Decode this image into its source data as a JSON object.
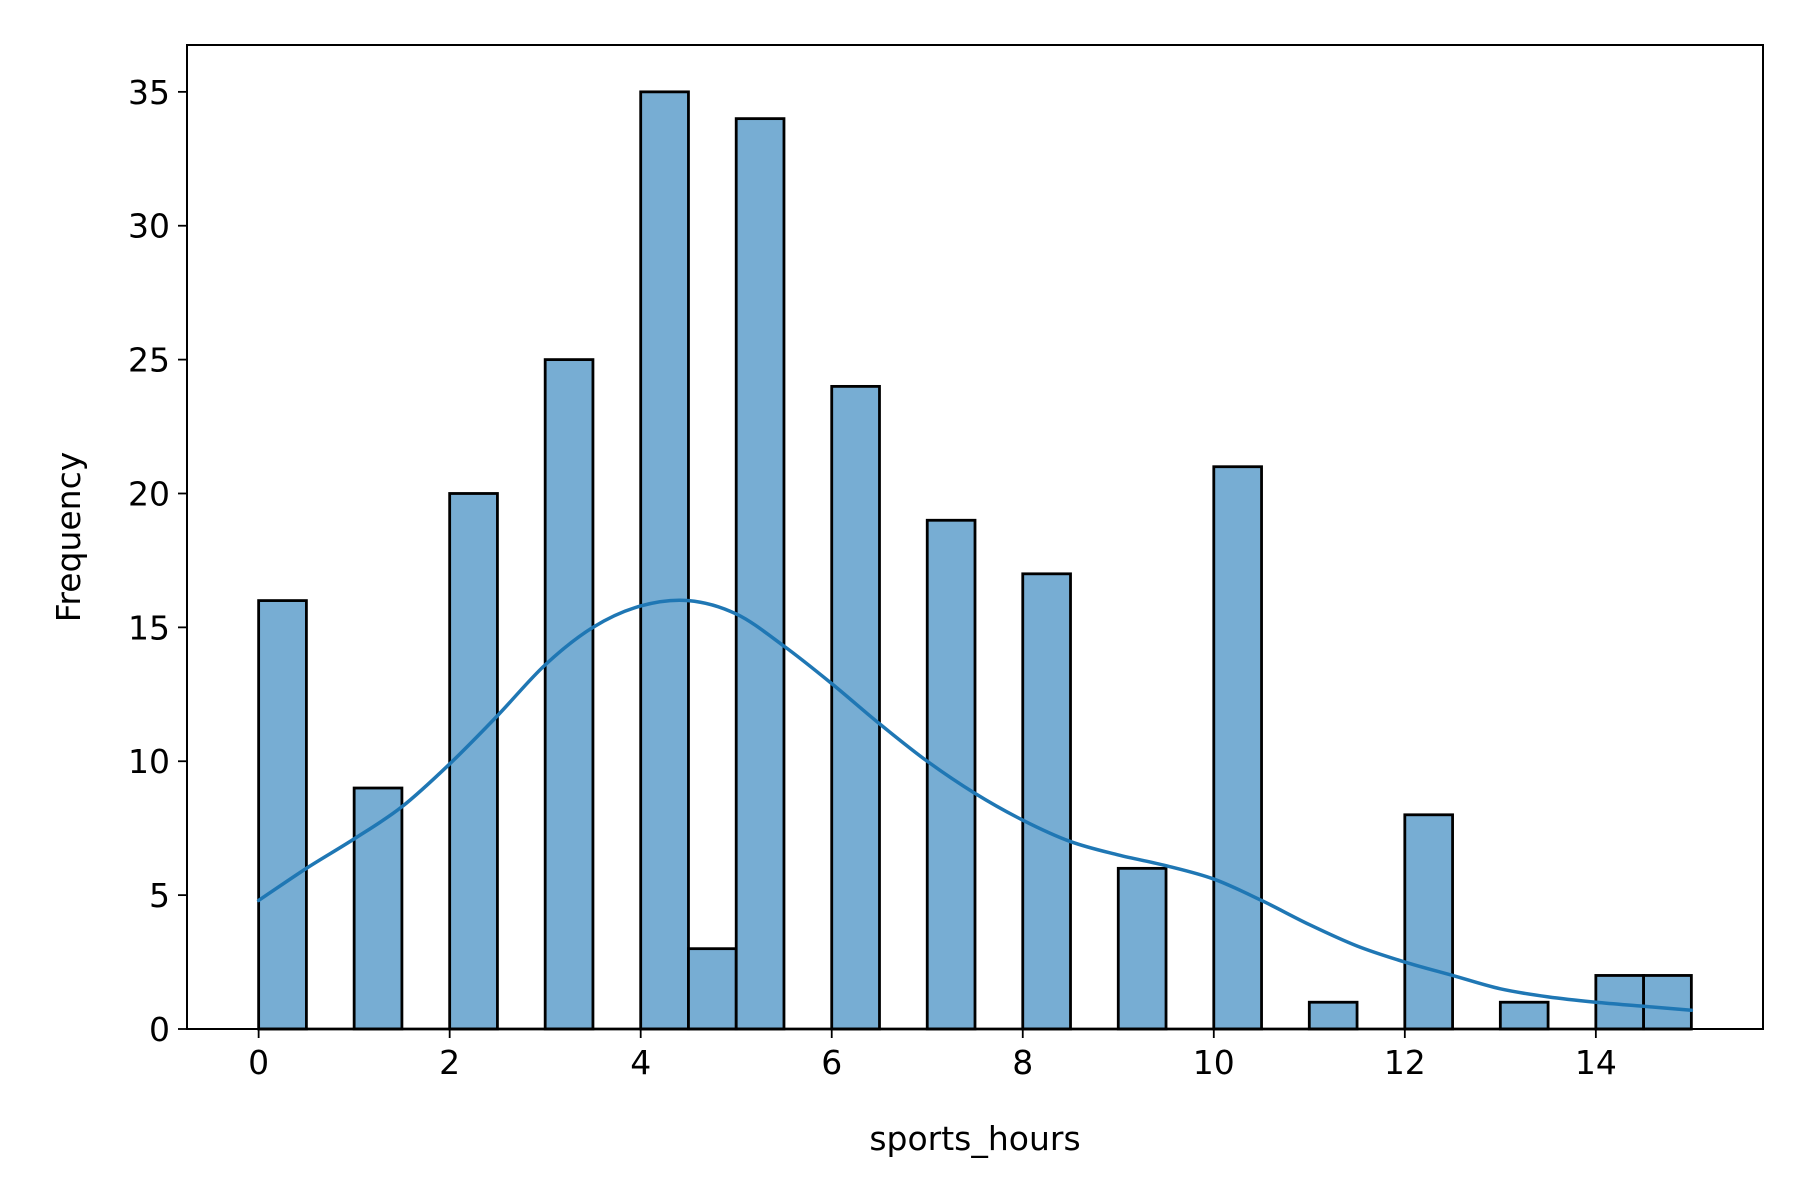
{
  "chart_data": {
    "type": "bar",
    "subtype": "histogram_with_kde",
    "title": "",
    "xlabel": "sports_hours",
    "ylabel": "Frequency",
    "xlim": [
      -0.75,
      15.75
    ],
    "ylim": [
      0,
      36.75
    ],
    "xticks": [
      0,
      2,
      4,
      6,
      8,
      10,
      12,
      14
    ],
    "yticks": [
      0,
      5,
      10,
      15,
      20,
      25,
      30,
      35
    ],
    "bin_width": 0.5,
    "bins": [
      {
        "x0": 0.0,
        "x1": 0.5,
        "count": 16
      },
      {
        "x0": 1.0,
        "x1": 1.5,
        "count": 9
      },
      {
        "x0": 2.0,
        "x1": 2.5,
        "count": 20
      },
      {
        "x0": 3.0,
        "x1": 3.5,
        "count": 25
      },
      {
        "x0": 4.0,
        "x1": 4.5,
        "count": 35
      },
      {
        "x0": 4.5,
        "x1": 5.0,
        "count": 3
      },
      {
        "x0": 5.0,
        "x1": 5.5,
        "count": 34
      },
      {
        "x0": 6.0,
        "x1": 6.5,
        "count": 24
      },
      {
        "x0": 7.0,
        "x1": 7.5,
        "count": 19
      },
      {
        "x0": 8.0,
        "x1": 8.5,
        "count": 17
      },
      {
        "x0": 9.0,
        "x1": 9.5,
        "count": 6
      },
      {
        "x0": 10.0,
        "x1": 10.5,
        "count": 21
      },
      {
        "x0": 11.0,
        "x1": 11.5,
        "count": 1
      },
      {
        "x0": 12.0,
        "x1": 12.5,
        "count": 8
      },
      {
        "x0": 13.0,
        "x1": 13.5,
        "count": 1
      },
      {
        "x0": 14.0,
        "x1": 14.5,
        "count": 2
      },
      {
        "x0": 14.5,
        "x1": 15.0,
        "count": 2
      }
    ],
    "kde": {
      "x": [
        0,
        0.5,
        1,
        1.5,
        2,
        2.5,
        3,
        3.5,
        4,
        4.5,
        5,
        5.5,
        6,
        6.5,
        7,
        7.5,
        8,
        8.5,
        9,
        9.5,
        10,
        10.5,
        11,
        11.5,
        12,
        12.5,
        13,
        13.5,
        14,
        14.5,
        15
      ],
      "y": [
        4.8,
        6.0,
        7.1,
        8.3,
        9.9,
        11.7,
        13.6,
        15.0,
        15.8,
        16.0,
        15.5,
        14.3,
        12.9,
        11.4,
        10.0,
        8.8,
        7.8,
        7.0,
        6.5,
        6.1,
        5.6,
        4.8,
        3.9,
        3.1,
        2.5,
        2.0,
        1.5,
        1.2,
        1.0,
        0.85,
        0.7
      ]
    },
    "colors": {
      "bar_fill": "#77adD3",
      "bar_edge": "#000000",
      "kde_line": "#1f77b4"
    },
    "grid": false,
    "legend": "none"
  }
}
